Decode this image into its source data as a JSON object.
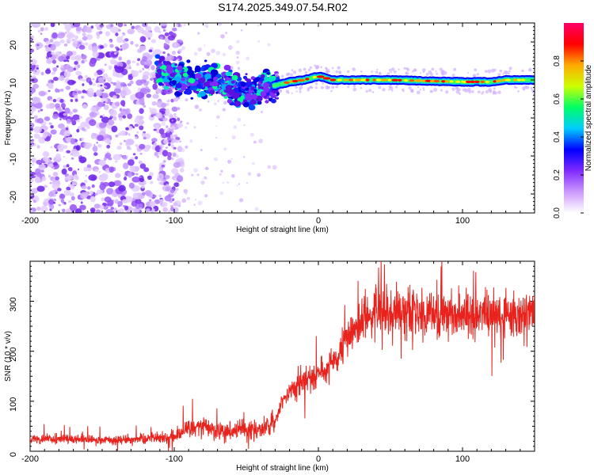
{
  "title": "S174.2025.349.07.54.R02",
  "colors": {
    "snr_line": "#e8221c",
    "axes": "#000000",
    "background": "#ffffff"
  },
  "chart_data": [
    {
      "type": "heatmap",
      "panel": "spectrogram",
      "xlabel": "Height of straight line (km)",
      "ylabel": "Frequency (Hz)",
      "xlim": [
        -200,
        150
      ],
      "ylim": [
        -25,
        25
      ],
      "xticks": [
        -200,
        -100,
        0,
        100
      ],
      "xtick_labels": [
        "-200",
        "-100",
        "0",
        "100"
      ],
      "yticks": [
        -20,
        -10,
        0,
        10,
        20
      ],
      "ytick_labels": [
        "-20",
        "-10",
        "0",
        "10",
        "20"
      ],
      "colormap": [
        "#ffffff",
        "#cc99ff",
        "#7f2aff",
        "#0000ff",
        "#00ccff",
        "#00ff66",
        "#ccff00",
        "#ffaa00",
        "#ff0000",
        "#ff0066"
      ],
      "colorbar": {
        "label": "Normalized spectral amplitude",
        "ticks": [
          0.0,
          0.2,
          0.4,
          0.6,
          0.8
        ],
        "tick_labels": [
          "0.0",
          "0.2",
          "0.4",
          "0.6",
          "0.8"
        ],
        "range": [
          0,
          1
        ]
      },
      "features": {
        "noise_region_x": [
          -200,
          -100
        ],
        "scattered_region_x": [
          -110,
          -30
        ],
        "carrier_region_x": [
          -30,
          150
        ],
        "carrier_frequency_hz": [
          [
            -110,
            12
          ],
          [
            -90,
            10
          ],
          [
            -70,
            9.5
          ],
          [
            -55,
            7
          ],
          [
            -45,
            6.5
          ],
          [
            -40,
            8
          ],
          [
            -30,
            8.5
          ],
          [
            -20,
            9.5
          ],
          [
            -10,
            10
          ],
          [
            0,
            11
          ],
          [
            10,
            10
          ],
          [
            50,
            10
          ],
          [
            100,
            9.5
          ],
          [
            120,
            9.5
          ],
          [
            130,
            10
          ],
          [
            150,
            10
          ]
        ]
      }
    },
    {
      "type": "line",
      "panel": "snr",
      "xlabel": "Height of straight line (km)",
      "ylabel": "SNR (10 * v/v)",
      "xlim": [
        -200,
        150
      ],
      "ylim": [
        0,
        380
      ],
      "xticks": [
        -200,
        -100,
        0,
        100
      ],
      "xtick_labels": [
        "-200",
        "-100",
        "0",
        "100"
      ],
      "yticks": [
        0,
        100,
        200,
        300
      ],
      "ytick_labels": [
        "0",
        "100",
        "200",
        "300"
      ],
      "trend": {
        "x": [
          -200,
          -150,
          -120,
          -100,
          -90,
          -80,
          -70,
          -60,
          -50,
          -40,
          -30,
          -25,
          -20,
          -10,
          0,
          10,
          15,
          20,
          30,
          40,
          60,
          80,
          100,
          120,
          150
        ],
        "y": [
          25,
          22,
          25,
          30,
          45,
          50,
          40,
          40,
          45,
          45,
          60,
          100,
          120,
          140,
          160,
          175,
          190,
          230,
          260,
          280,
          275,
          275,
          275,
          270,
          275
        ]
      }
    }
  ]
}
